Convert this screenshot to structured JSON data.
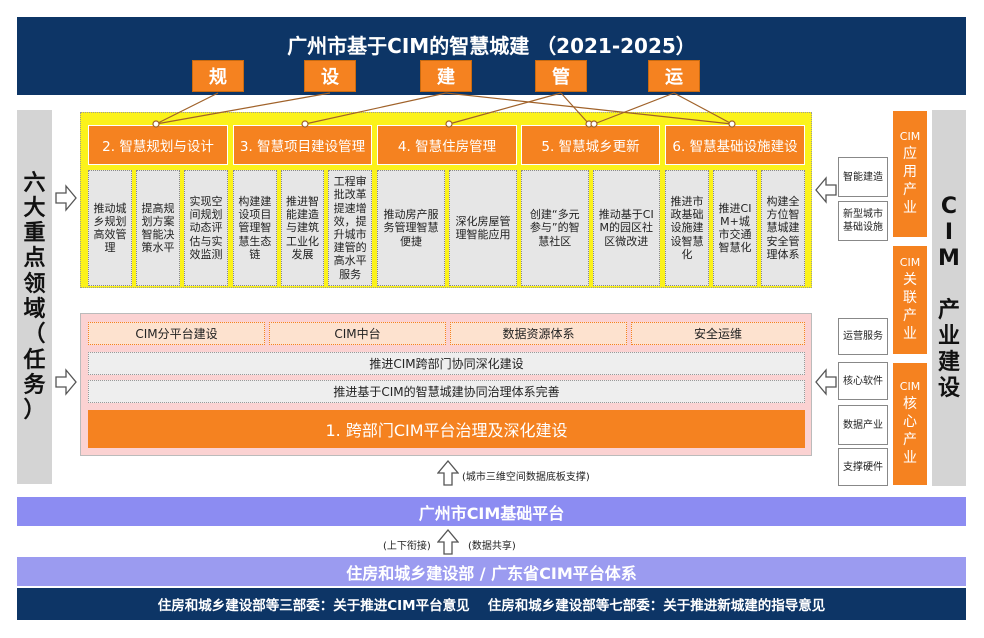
{
  "header": {
    "title": "广州市基于CIM的智慧城建 （2021-2025）",
    "letters": [
      "规",
      "设",
      "建",
      "管",
      "运"
    ]
  },
  "left_label": "六大重点领域（任务）",
  "left_label_chars": [
    "六",
    "大",
    "重",
    "点",
    "领",
    "域",
    "（",
    "任",
    "务",
    "）"
  ],
  "tasks": [
    {
      "title": "2. 智慧规划与设计",
      "items": [
        "推动城乡规划高效管理",
        "提高规划方案智能决策水平",
        "实现空间规划动态评估与实效监测"
      ]
    },
    {
      "title": "3. 智慧项目建设管理",
      "items": [
        "构建建设项目管理智慧生态链",
        "推进智能建造与建筑工业化发展",
        "工程审批改革提速增效，提升城市建管的高水平服务"
      ]
    },
    {
      "title": "4. 智慧住房管理",
      "items": [
        "推动房产服务管理智慧便捷",
        "深化房屋管理智能应用"
      ]
    },
    {
      "title": "5. 智慧城乡更新",
      "items": [
        "创建“多元参与”的智慧社区",
        "推动基于CIM的园区社区微改进"
      ]
    },
    {
      "title": "6. 智慧基础设施建设",
      "items": [
        "推进市政基础设施建设智慧化",
        "推进CIM+城市交通智慧化",
        "构建全方位智慧城建安全管理体系"
      ]
    }
  ],
  "platform": {
    "subs": [
      "CIM分平台建设",
      "CIM中台",
      "数据资源体系",
      "安全运维"
    ],
    "row1": "推进CIM跨部门协同深化建设",
    "row2": "推进基于CIM的智慧城建协同治理体系完善",
    "main": "1. 跨部门CIM平台治理及深化建设"
  },
  "support_note": "(城市三维空间数据底板支撑)",
  "base_platform": "广州市CIM基础平台",
  "link_left": "(上下衔接)",
  "link_right": "(数据共享)",
  "provincial": "住房和城乡建设部 / 广东省CIM平台体系",
  "bottom": "住房和城乡建设部等三部委：关于推进CIM平台意见　 住房和城乡建设部等七部委：关于推进新城建的指导意见",
  "industry": {
    "label_chars": [
      "C",
      "I",
      "M",
      "",
      "产",
      "业",
      "建",
      "设"
    ],
    "groups": [
      {
        "chars": [
          "CIM",
          "应",
          "用",
          "产",
          "业"
        ]
      },
      {
        "chars": [
          "CIM",
          "关",
          "联",
          "产",
          "业"
        ]
      },
      {
        "chars": [
          "CIM",
          "核",
          "心",
          "产",
          "业"
        ]
      }
    ],
    "items": [
      "智能建造",
      "新型城市基础设施",
      "运营服务",
      "核心软件",
      "数据产业",
      "支撑硬件"
    ]
  },
  "colors": {
    "navy": "#0d3566",
    "orange": "#f58220",
    "yellow": "#fbf21b",
    "pink": "#fbd2d2",
    "purple": "#8c8cf2"
  }
}
